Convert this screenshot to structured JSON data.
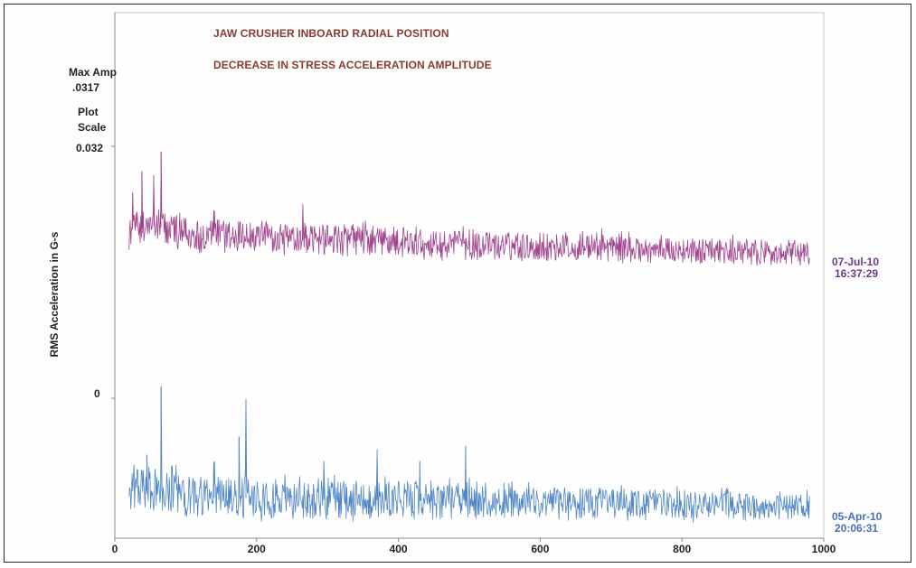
{
  "titles": {
    "line1": "JAW CRUSHER INBOARD RADIAL POSITION",
    "line2": "DECREASE IN STRESS ACCELERATION AMPLITUDE"
  },
  "info": {
    "max_amp_label": "Max Amp",
    "max_amp_value": ".0317",
    "plot_scale_line1": "Plot",
    "plot_scale_line2": "Scale",
    "scale_top": "0.032",
    "scale_zero": "0"
  },
  "colors": {
    "title": "#8b3a2e",
    "series_top": "#a0438f",
    "series_bottom": "#4f86c6",
    "ts_top": "#6b3a8c",
    "ts_bottom": "#4a6fb8",
    "axis": "#8a8a8a"
  },
  "chart_data": {
    "type": "line",
    "title": "JAW CRUSHER INBOARD RADIAL POSITION",
    "subtitle": "DECREASE IN STRESS ACCELERATION AMPLITUDE",
    "xlabel": "",
    "ylabel": "RMS Acceleration in G-s",
    "xlim": [
      0,
      1000
    ],
    "x_ticks": [
      "0",
      "200",
      "400",
      "600",
      "800",
      "1000"
    ],
    "plot_scale": [
      0,
      0.032
    ],
    "max_amp": 0.0317,
    "x_start": 20,
    "x_end": 980,
    "series": [
      {
        "name": "07-Jul-10 16:37:29",
        "date": "07-Jul-10",
        "time": "16:37:29",
        "points": [
          [
            20,
            0.0213
          ],
          [
            60,
            0.0219
          ],
          [
            100,
            0.0207
          ],
          [
            150,
            0.0206
          ],
          [
            200,
            0.0205
          ],
          [
            250,
            0.0201
          ],
          [
            300,
            0.02
          ],
          [
            350,
            0.02
          ],
          [
            400,
            0.0197
          ],
          [
            450,
            0.0194
          ],
          [
            500,
            0.0194
          ],
          [
            550,
            0.0192
          ],
          [
            600,
            0.0192
          ],
          [
            650,
            0.0192
          ],
          [
            700,
            0.0191
          ],
          [
            750,
            0.0188
          ],
          [
            800,
            0.0187
          ],
          [
            850,
            0.0186
          ],
          [
            900,
            0.0184
          ],
          [
            950,
            0.0183
          ],
          [
            980,
            0.0183
          ]
        ],
        "spikes": [
          [
            25,
            0.0261
          ],
          [
            38,
            0.0288
          ],
          [
            55,
            0.0283
          ],
          [
            65,
            0.0313
          ],
          [
            100,
            0.0228
          ],
          [
            140,
            0.0238
          ],
          [
            265,
            0.0246
          ],
          [
            500,
            0.0214
          ],
          [
            660,
            0.0212
          ],
          [
            720,
            0.0203
          ]
        ]
      },
      {
        "name": "05-Apr-10 20:06:31",
        "date": "05-Apr-10",
        "time": "20:06:31",
        "points": [
          [
            20,
            -0.0117
          ],
          [
            60,
            -0.0117
          ],
          [
            100,
            -0.0124
          ],
          [
            150,
            -0.0127
          ],
          [
            200,
            -0.0127
          ],
          [
            250,
            -0.0128
          ],
          [
            300,
            -0.0129
          ],
          [
            350,
            -0.0129
          ],
          [
            400,
            -0.013
          ],
          [
            450,
            -0.0131
          ],
          [
            500,
            -0.0131
          ],
          [
            550,
            -0.0132
          ],
          [
            600,
            -0.0133
          ],
          [
            650,
            -0.0134
          ],
          [
            700,
            -0.0135
          ],
          [
            750,
            -0.0136
          ],
          [
            800,
            -0.0137
          ],
          [
            850,
            -0.0137
          ],
          [
            900,
            -0.0138
          ],
          [
            950,
            -0.0139
          ],
          [
            980,
            -0.014
          ]
        ],
        "spikes": [
          [
            45,
            -0.0072
          ],
          [
            65,
            0.0015
          ],
          [
            80,
            -0.0086
          ],
          [
            140,
            -0.0081
          ],
          [
            175,
            -0.0049
          ],
          [
            185,
            -0.0001
          ],
          [
            240,
            -0.0097
          ],
          [
            295,
            -0.008
          ],
          [
            370,
            -0.0065
          ],
          [
            430,
            -0.008
          ],
          [
            495,
            -0.0061
          ],
          [
            560,
            -0.0106
          ],
          [
            660,
            -0.0115
          ],
          [
            750,
            -0.012
          ],
          [
            870,
            -0.0126
          ]
        ]
      }
    ]
  }
}
